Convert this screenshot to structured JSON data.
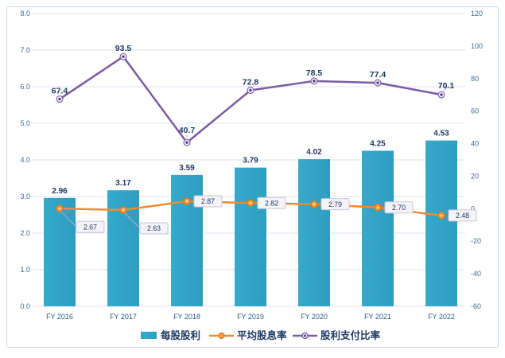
{
  "chart_data": {
    "type": "combo",
    "title": "",
    "categories": [
      "FY 2016",
      "FY 2017",
      "FY 2018",
      "FY 2019",
      "FY 2020",
      "FY 2021",
      "FY 2022"
    ],
    "series": [
      {
        "name": "每股股利",
        "kind": "bar",
        "axis": "left",
        "color": "#2D9EC0",
        "color_light": "#36AACB",
        "values": [
          2.96,
          3.17,
          3.59,
          3.79,
          4.02,
          4.25,
          4.53
        ],
        "label_decimals": 2,
        "label_style": "plain"
      },
      {
        "name": "平均股息率",
        "kind": "line",
        "axis": "left",
        "color": "#EF8B30",
        "marker_fill": "#F5A149",
        "marker_stroke": "#DD791E",
        "values": [
          2.67,
          2.63,
          2.87,
          2.82,
          2.79,
          2.7,
          2.48
        ],
        "label_decimals": 2,
        "label_style": "boxed"
      },
      {
        "name": "股利支付比率",
        "kind": "line",
        "axis": "right",
        "color": "#7B5BA3",
        "marker_fill": "#EFEAF5",
        "marker_stroke": "#6F5399",
        "marker_dot": "#5C3E87",
        "values": [
          67.4,
          93.5,
          40.7,
          72.8,
          78.5,
          77.4,
          70.1
        ],
        "label_decimals": 1,
        "label_style": "plain"
      }
    ],
    "left_axis": {
      "min": 0,
      "max": 8,
      "step": 1,
      "decimals": 1
    },
    "right_axis": {
      "min": -60,
      "max": 120,
      "step": 20,
      "decimals": 0
    },
    "grid": "horizontal",
    "legend_position": "bottom"
  },
  "palette": {
    "grid_line": "#DBE6F1",
    "tick_text": "#3E6A94",
    "category_text": "#2F5B86",
    "data_label_text": "#1F3A63",
    "boxed_label_bg": "#F5F3F8",
    "boxed_label_border": "#C9C5DA",
    "leader_line": "#AAB8CC",
    "card_border": "#CDDCED",
    "card_bg": "#FFFFFF"
  }
}
